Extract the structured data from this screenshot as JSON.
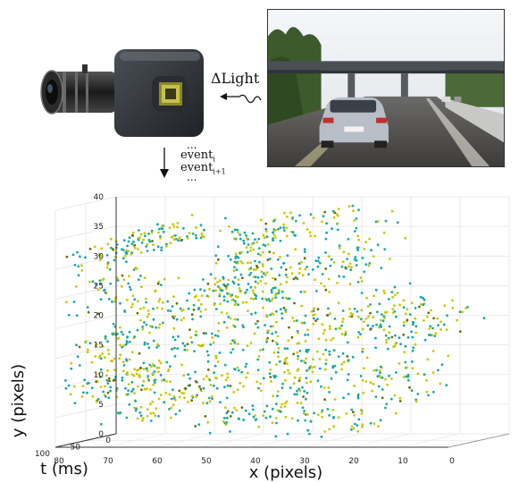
{
  "diagram": {
    "light_label": "ΔLight",
    "events": {
      "dots": "...",
      "event_i": "event",
      "event_i_sub": "i",
      "event_i1": "event",
      "event_i1_sub": "i+1"
    }
  },
  "chart_data": {
    "type": "scatter",
    "projection": "3d",
    "xlabel": "x (pixels)",
    "ylabel": "y (pixels)",
    "zlabel": "t (ms)",
    "x_ticks": [
      "80",
      "70",
      "60",
      "50",
      "40",
      "30",
      "20",
      "10",
      "0"
    ],
    "y_ticks": [
      "0",
      "5",
      "10",
      "15",
      "20",
      "25",
      "30",
      "35",
      "40"
    ],
    "t_ticks": [
      "100",
      "50",
      "0"
    ],
    "xlim": [
      0,
      80
    ],
    "ylim": [
      0,
      40
    ],
    "tlim": [
      0,
      100
    ],
    "grid": true,
    "colors": {
      "positive": "#c8c800",
      "negative": "#1aa8a8",
      "dark": "#6e6e00"
    }
  }
}
